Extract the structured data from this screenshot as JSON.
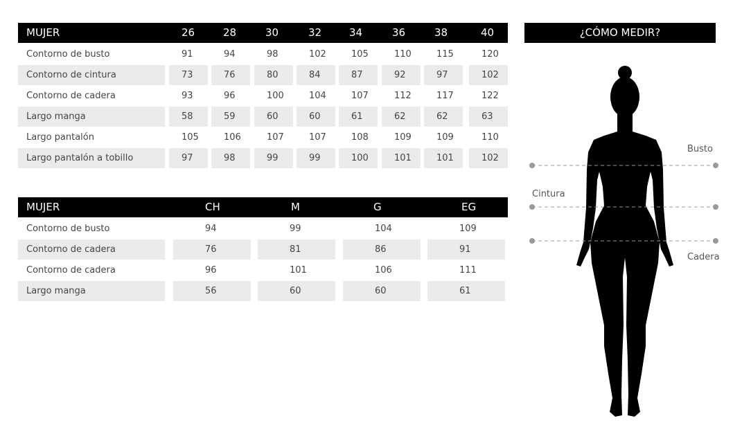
{
  "table1": {
    "header": [
      "MUJER",
      "26",
      "28",
      "30",
      "32",
      "34",
      "36",
      "38",
      "40"
    ],
    "rows": [
      {
        "label": "Contorno de busto",
        "values": [
          "91",
          "94",
          "98",
          "102",
          "105",
          "110",
          "115",
          "120"
        ]
      },
      {
        "label": "Contorno de cintura",
        "values": [
          "73",
          "76",
          "80",
          "84",
          "87",
          "92",
          "97",
          "102"
        ]
      },
      {
        "label": "Contorno de cadera",
        "values": [
          "93",
          "96",
          "100",
          "104",
          "107",
          "112",
          "117",
          "122"
        ]
      },
      {
        "label": "Largo manga",
        "values": [
          "58",
          "59",
          "60",
          "60",
          "61",
          "62",
          "62",
          "63"
        ]
      },
      {
        "label": "Largo pantalón",
        "values": [
          "105",
          "106",
          "107",
          "107",
          "108",
          "109",
          "109",
          "110"
        ]
      },
      {
        "label": "Largo pantalón a tobillo",
        "values": [
          "97",
          "98",
          "99",
          "99",
          "100",
          "101",
          "101",
          "102"
        ]
      }
    ]
  },
  "table2": {
    "header": [
      "MUJER",
      "CH",
      "M",
      "G",
      "EG"
    ],
    "rows": [
      {
        "label": "Contorno de busto",
        "values": [
          "94",
          "99",
          "104",
          "109"
        ]
      },
      {
        "label": "Contorno de cadera",
        "values": [
          "76",
          "81",
          "86",
          "91"
        ]
      },
      {
        "label": "Contorno de cadera",
        "values": [
          "96",
          "101",
          "106",
          "111"
        ]
      },
      {
        "label": "Largo manga",
        "values": [
          "56",
          "60",
          "60",
          "61"
        ]
      }
    ]
  },
  "guide": {
    "title": "¿CÓMO MEDIR?",
    "busto": "Busto",
    "cintura": "Cintura",
    "cadera": "Cadera",
    "line_color": "#999999"
  }
}
